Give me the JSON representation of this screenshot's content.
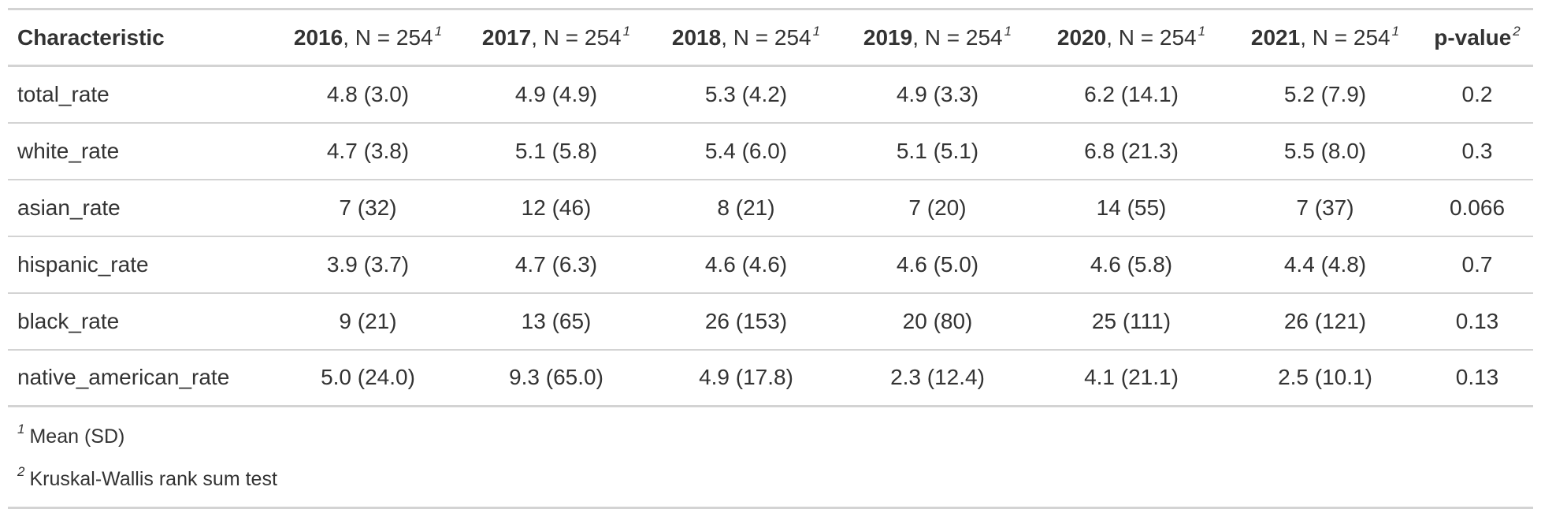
{
  "table": {
    "columns": [
      {
        "year": "",
        "n_label": "Characteristic",
        "footnote": ""
      },
      {
        "year": "2016",
        "n_label": ", N = 254",
        "footnote": "1"
      },
      {
        "year": "2017",
        "n_label": ", N = 254",
        "footnote": "1"
      },
      {
        "year": "2018",
        "n_label": ", N = 254",
        "footnote": "1"
      },
      {
        "year": "2019",
        "n_label": ", N = 254",
        "footnote": "1"
      },
      {
        "year": "2020",
        "n_label": ", N = 254",
        "footnote": "1"
      },
      {
        "year": "2021",
        "n_label": ", N = 254",
        "footnote": "1"
      },
      {
        "year": "p-value",
        "n_label": "",
        "footnote": "2"
      }
    ],
    "rows": [
      {
        "label": "total_rate",
        "cells": [
          "4.8 (3.0)",
          "4.9 (4.9)",
          "5.3 (4.2)",
          "4.9 (3.3)",
          "6.2 (14.1)",
          "5.2 (7.9)",
          "0.2"
        ]
      },
      {
        "label": "white_rate",
        "cells": [
          "4.7 (3.8)",
          "5.1 (5.8)",
          "5.4 (6.0)",
          "5.1 (5.1)",
          "6.8 (21.3)",
          "5.5 (8.0)",
          "0.3"
        ]
      },
      {
        "label": "asian_rate",
        "cells": [
          "7 (32)",
          "12 (46)",
          "8 (21)",
          "7 (20)",
          "14 (55)",
          "7 (37)",
          "0.066"
        ]
      },
      {
        "label": "hispanic_rate",
        "cells": [
          "3.9 (3.7)",
          "4.7 (6.3)",
          "4.6 (4.6)",
          "4.6 (5.0)",
          "4.6 (5.8)",
          "4.4 (4.8)",
          "0.7"
        ]
      },
      {
        "label": "black_rate",
        "cells": [
          "9 (21)",
          "13 (65)",
          "26 (153)",
          "20 (80)",
          "25 (111)",
          "26 (121)",
          "0.13"
        ]
      },
      {
        "label": "native_american_rate",
        "cells": [
          "5.0 (24.0)",
          "9.3 (65.0)",
          "4.9 (17.8)",
          "2.3 (12.4)",
          "4.1 (21.1)",
          "2.5 (10.1)",
          "0.13"
        ]
      }
    ],
    "footnotes": [
      {
        "mark": "1",
        "text": "Mean (SD)"
      },
      {
        "mark": "2",
        "text": "Kruskal-Wallis rank sum test"
      }
    ]
  }
}
